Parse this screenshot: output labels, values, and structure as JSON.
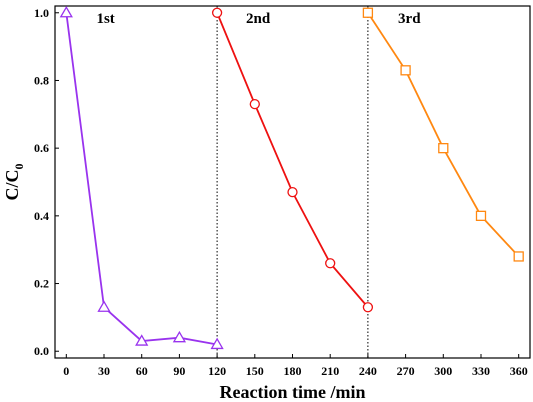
{
  "chart_data": {
    "type": "line",
    "xlabel": "Reaction time /min",
    "ylabel_main": "C/C",
    "ylabel_sub": "0",
    "xlim": [
      -9,
      369
    ],
    "ylim": [
      -0.02,
      1.02
    ],
    "xticks": [
      0,
      30,
      60,
      90,
      120,
      150,
      180,
      210,
      240,
      270,
      300,
      330,
      360
    ],
    "yticks": [
      0.0,
      0.2,
      0.4,
      0.6,
      0.8,
      1.0
    ],
    "ytick_labels": [
      "0.0",
      "0.2",
      "0.4",
      "0.6",
      "0.8",
      "1.0"
    ],
    "grid": false,
    "cycle_dividers": [
      120,
      240
    ],
    "annotations": [
      {
        "text": "1st",
        "x": 24,
        "y": 0.985
      },
      {
        "text": "2nd",
        "x": 143,
        "y": 0.985
      },
      {
        "text": "3rd",
        "x": 264,
        "y": 0.985
      }
    ],
    "series": [
      {
        "marker": "triangle",
        "color": "#9933ee",
        "x": [
          0,
          30,
          60,
          90,
          120
        ],
        "y": [
          1.0,
          0.13,
          0.03,
          0.04,
          0.02
        ]
      },
      {
        "marker": "circle",
        "color": "#ee1111",
        "x": [
          120,
          150,
          180,
          210,
          240
        ],
        "y": [
          1.0,
          0.73,
          0.47,
          0.26,
          0.13
        ]
      },
      {
        "marker": "square",
        "color": "#ff8811",
        "x": [
          240,
          270,
          300,
          330,
          360
        ],
        "y": [
          1.0,
          0.83,
          0.6,
          0.4,
          0.28
        ]
      }
    ]
  }
}
